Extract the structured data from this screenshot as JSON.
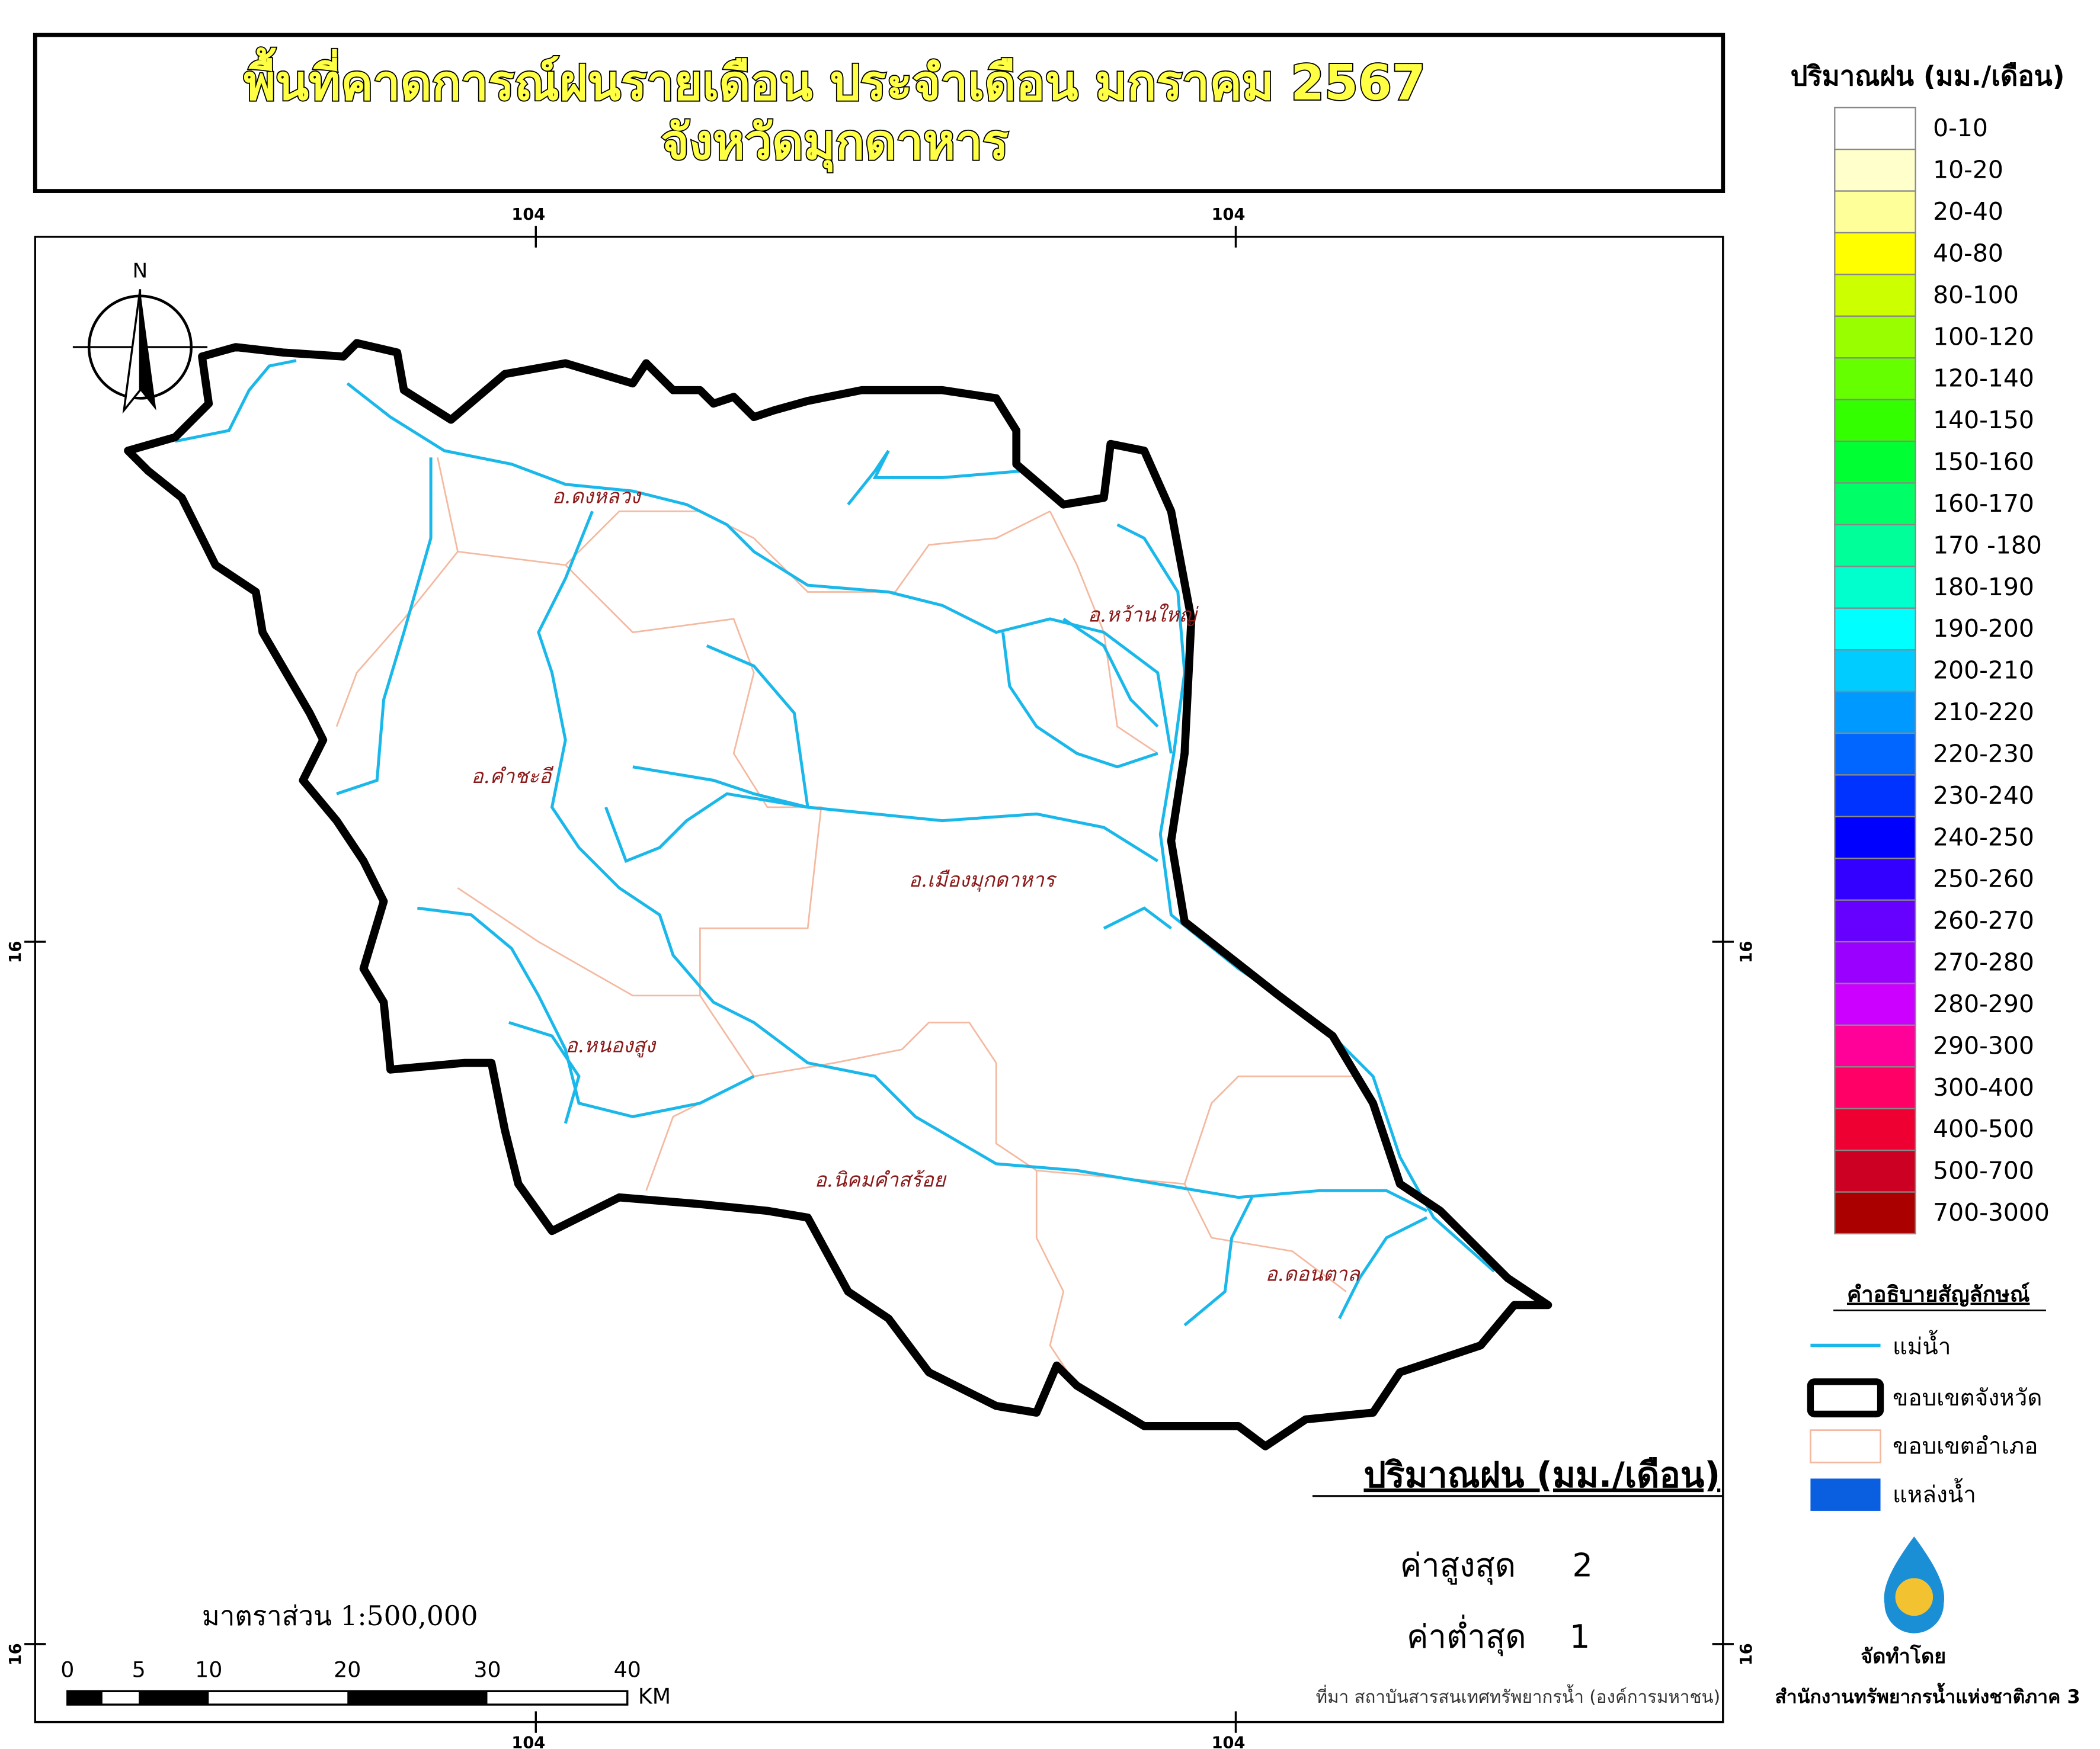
{
  "title": {
    "line1": "พื้นที่คาดการณ์ฝนรายเดือน ประจำเดือน มกราคม 2567",
    "line2": "จังหวัดมุกดาหาร"
  },
  "legend": {
    "title": "ปริมาณฝน (มม./เดือน)",
    "classes": [
      {
        "label": "0-10",
        "color": "#ffffff"
      },
      {
        "label": "10-20",
        "color": "#ffffcc"
      },
      {
        "label": "20-40",
        "color": "#ffff99"
      },
      {
        "label": "40-80",
        "color": "#ffff00"
      },
      {
        "label": "80-100",
        "color": "#ccff00"
      },
      {
        "label": "100-120",
        "color": "#99ff00"
      },
      {
        "label": "120-140",
        "color": "#66ff00"
      },
      {
        "label": "140-150",
        "color": "#33ff00"
      },
      {
        "label": "150-160",
        "color": "#00ff33"
      },
      {
        "label": "160-170",
        "color": "#00ff66"
      },
      {
        "label": "170 -180",
        "color": "#00ff99"
      },
      {
        "label": "180-190",
        "color": "#00ffcc"
      },
      {
        "label": "190-200",
        "color": "#00ffff"
      },
      {
        "label": "200-210",
        "color": "#00ccff"
      },
      {
        "label": "210-220",
        "color": "#0099ff"
      },
      {
        "label": "220-230",
        "color": "#0066ff"
      },
      {
        "label": "230-240",
        "color": "#0033ff"
      },
      {
        "label": "240-250",
        "color": "#0000ff"
      },
      {
        "label": "250-260",
        "color": "#3300ff"
      },
      {
        "label": "260-270",
        "color": "#6600ff"
      },
      {
        "label": "270-280",
        "color": "#9900ff"
      },
      {
        "label": "280-290",
        "color": "#cc00ff"
      },
      {
        "label": "290-300",
        "color": "#ff0099"
      },
      {
        "label": "300-400",
        "color": "#ff0066"
      },
      {
        "label": "400-500",
        "color": "#ee0033"
      },
      {
        "label": "500-700",
        "color": "#cc0022"
      },
      {
        "label": "700-3000",
        "color": "#aa0000"
      }
    ]
  },
  "symbols": {
    "title": "คำอธิบายสัญลักษณ์",
    "river": "แม่น้ำ",
    "province": "ขอบเขตจังหวัด",
    "district": "ขอบเขตอำเภอ",
    "water": "แหล่งน้ำ"
  },
  "districts": [
    "อ.ดงหลวง",
    "อ.หว้านใหญ่",
    "อ.คำชะอี",
    "อ.เมืองมุกดาหาร",
    "อ.หนองสูง",
    "อ.นิคมคำสร้อย",
    "อ.ดอนตาล"
  ],
  "graticule": {
    "top": [
      "104",
      "104"
    ],
    "bottom": [
      "104",
      "104"
    ],
    "left": [
      "16",
      "16"
    ],
    "right": [
      "16",
      "16"
    ]
  },
  "north": "N",
  "stats": {
    "title": "ปริมาณฝน (มม./เดือน)",
    "max_label": "ค่าสูงสุด",
    "max": 2,
    "min_label": "ค่าต่ำสุด",
    "min": 1
  },
  "scale": {
    "text": "มาตราส่วน 1:500,000",
    "labels": [
      "0",
      "5",
      "10",
      "20",
      "30",
      "40"
    ],
    "unit": "KM"
  },
  "source": "ที่มา  สถาบันสารสนเทศทรัพยากรน้ำ (องค์การมหาชน)",
  "producer": {
    "label": "จัดทำโดย",
    "name": "สำนักงานทรัพยากรน้ำแห่งชาติภาค 3"
  }
}
